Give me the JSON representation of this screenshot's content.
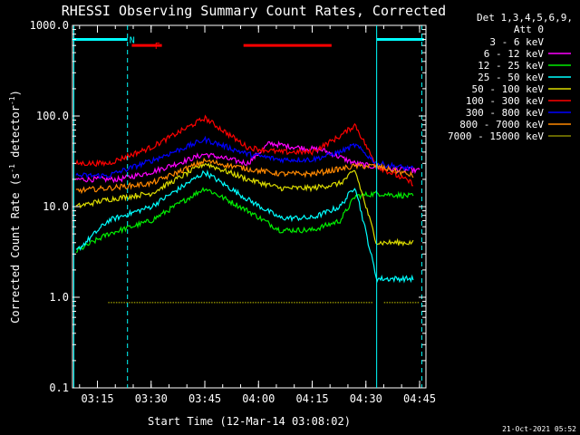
{
  "chart_data": {
    "type": "line",
    "title": "RHESSI Observing Summary Count Rates, Corrected",
    "xlabel": "Start Time (12-Mar-14 03:08:02)",
    "ylabel_main": "Corrected Count Rate (s",
    "ylabel_exp1": "-1",
    "ylabel_mid": " detector",
    "ylabel_exp2": "-1",
    "ylabel_end": ")",
    "yscale": "log",
    "ylim": [
      0.1,
      1000
    ],
    "xlim": [
      3.1339,
      4.7794
    ],
    "x_ticks": [
      {
        "t": 3.25,
        "label": "03:15"
      },
      {
        "t": 3.5,
        "label": "03:30"
      },
      {
        "t": 3.75,
        "label": "03:45"
      },
      {
        "t": 4.0,
        "label": "04:00"
      },
      {
        "t": 4.25,
        "label": "04:15"
      },
      {
        "t": 4.5,
        "label": "04:30"
      },
      {
        "t": 4.75,
        "label": "04:45"
      }
    ],
    "y_ticks": [
      {
        "v": 1000,
        "label": "1000.0"
      },
      {
        "v": 100,
        "label": "100.0"
      },
      {
        "v": 10,
        "label": "10.0"
      },
      {
        "v": 1,
        "label": "1.0"
      },
      {
        "v": 0.1,
        "label": "0.1"
      }
    ],
    "legend_header": [
      "Det 1,3,4,5,6,9,",
      "Att 0"
    ],
    "series": [
      {
        "name": "3 - 6 keV",
        "color": "#000000",
        "t": [
          3.15,
          3.35,
          3.5,
          3.75,
          3.95,
          4.05,
          4.15,
          4.3,
          4.45,
          4.6,
          4.75
        ],
        "v": [
          15,
          15,
          22,
          36,
          32,
          45,
          40,
          38,
          30,
          25,
          25
        ]
      },
      {
        "name": "6 - 12 keV",
        "color": "#ff00ff",
        "t": [
          3.15,
          3.35,
          3.5,
          3.75,
          3.95,
          4.05,
          4.15,
          4.3,
          4.45,
          4.6,
          4.75
        ],
        "v": [
          20,
          20,
          24,
          38,
          30,
          50,
          46,
          42,
          30,
          26,
          25
        ]
      },
      {
        "name": "12 - 25 keV",
        "color": "#00ee00",
        "t": [
          3.15,
          3.3,
          3.5,
          3.75,
          3.95,
          4.1,
          4.25,
          4.38,
          4.45,
          4.55,
          4.72
        ],
        "v": [
          3.2,
          5,
          7,
          16,
          9,
          5.5,
          5.5,
          7,
          13,
          14,
          13
        ]
      },
      {
        "name": "25 - 50 keV",
        "color": "#00ffff",
        "t": [
          3.15,
          3.3,
          3.5,
          3.75,
          3.95,
          4.1,
          4.25,
          4.38,
          4.45,
          4.55,
          4.72
        ],
        "v": [
          3.2,
          7,
          10,
          24,
          12,
          7.5,
          7.5,
          10,
          17,
          1.6,
          1.6
        ]
      },
      {
        "name": "50 - 100 keV",
        "color": "#dddd00",
        "t": [
          3.15,
          3.3,
          3.5,
          3.75,
          3.95,
          4.1,
          4.25,
          4.38,
          4.45,
          4.55,
          4.72
        ],
        "v": [
          10,
          12,
          14,
          30,
          20,
          16,
          16,
          18,
          25,
          4,
          4
        ]
      },
      {
        "name": "100 - 300 keV",
        "color": "#ff0000",
        "t": [
          3.15,
          3.3,
          3.5,
          3.75,
          3.95,
          4.1,
          4.25,
          4.38,
          4.45,
          4.55,
          4.72
        ],
        "v": [
          30,
          30,
          45,
          95,
          45,
          40,
          40,
          60,
          80,
          28,
          18
        ]
      },
      {
        "name": "300 - 800 keV",
        "color": "#0000ff",
        "t": [
          3.15,
          3.3,
          3.5,
          3.75,
          3.95,
          4.1,
          4.25,
          4.38,
          4.45,
          4.55,
          4.72
        ],
        "v": [
          22,
          22,
          32,
          55,
          38,
          33,
          33,
          40,
          48,
          30,
          26
        ]
      },
      {
        "name": "800 - 7000 keV",
        "color": "#ff8800",
        "t": [
          3.15,
          3.3,
          3.5,
          3.75,
          3.95,
          4.1,
          4.25,
          4.38,
          4.45,
          4.55,
          4.72
        ],
        "v": [
          15,
          16,
          18,
          32,
          26,
          23,
          23,
          26,
          28,
          28,
          22
        ]
      },
      {
        "name": "7000 - 15000 keV",
        "color": "#888800",
        "t": [
          3.3,
          3.5,
          3.7,
          3.9,
          4.1,
          4.3,
          4.6,
          4.75
        ],
        "v": [
          0.87,
          0.87,
          0.87,
          0.87,
          0.87,
          0.87,
          0.87,
          0.87
        ]
      }
    ],
    "flag_bars": [
      {
        "label": "N",
        "color": "#00ffff",
        "level": 700,
        "spans": [
          [
            3.134,
            3.39
          ],
          [
            4.55,
            4.77
          ]
        ]
      },
      {
        "label": "F",
        "color": "#ff0000",
        "level": 600,
        "spans": [
          [
            3.41,
            3.55
          ],
          [
            3.93,
            4.34
          ]
        ]
      }
    ],
    "vertical_markers": [
      {
        "t": 3.14,
        "color": "#00ffff",
        "style": "solid"
      },
      {
        "t": 3.39,
        "color": "#00ffff",
        "style": "dashed"
      },
      {
        "t": 4.55,
        "color": "#00ffff",
        "style": "solid"
      },
      {
        "t": 4.76,
        "color": "#00ffff",
        "style": "dashed"
      }
    ],
    "footer_date": "21-Oct-2021 05:52"
  }
}
